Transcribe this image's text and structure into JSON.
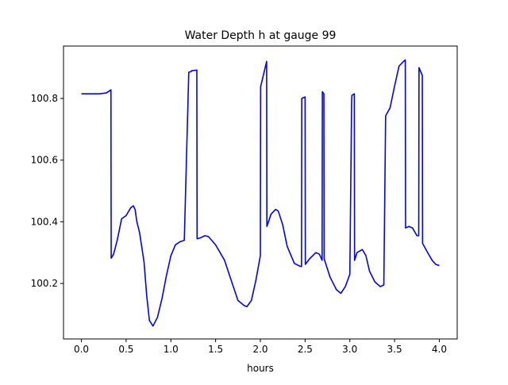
{
  "chart_data": {
    "type": "line",
    "title": "Water Depth h at gauge 99",
    "xlabel": "hours",
    "ylabel": "",
    "xlim": [
      -0.2,
      4.2
    ],
    "ylim": [
      100.02,
      100.97
    ],
    "xticks": [
      0.0,
      0.5,
      1.0,
      1.5,
      2.0,
      2.5,
      3.0,
      3.5,
      4.0
    ],
    "xtick_labels": [
      "0.0",
      "0.5",
      "1.0",
      "1.5",
      "2.0",
      "2.5",
      "3.0",
      "3.5",
      "4.0"
    ],
    "yticks": [
      100.2,
      100.4,
      100.6,
      100.8
    ],
    "ytick_labels": [
      "100.2",
      "100.4",
      "100.6",
      "100.8"
    ],
    "grid": false,
    "series": [
      {
        "color": "#0000ff",
        "x": [
          0.0,
          0.1,
          0.2,
          0.28,
          0.33,
          0.333,
          0.36,
          0.4,
          0.45,
          0.5,
          0.55,
          0.58,
          0.6,
          0.62,
          0.65,
          0.7,
          0.73,
          0.76,
          0.8,
          0.85,
          0.9,
          0.95,
          1.0,
          1.05,
          1.1,
          1.15,
          1.2,
          1.23,
          1.233,
          1.29,
          1.293,
          1.33,
          1.38,
          1.42,
          1.5,
          1.6,
          1.68,
          1.75,
          1.82,
          1.85,
          1.9,
          1.95,
          2.0,
          2.003,
          2.07,
          2.073,
          2.12,
          2.17,
          2.2,
          2.25,
          2.3,
          2.38,
          2.45,
          2.46,
          2.463,
          2.5,
          2.503,
          2.55,
          2.62,
          2.66,
          2.69,
          2.693,
          2.71,
          2.713,
          2.78,
          2.85,
          2.9,
          2.95,
          3.0,
          3.02,
          3.023,
          3.05,
          3.053,
          3.08,
          3.14,
          3.18,
          3.22,
          3.28,
          3.34,
          3.38,
          3.4,
          3.403,
          3.45,
          3.5,
          3.55,
          3.6,
          3.62,
          3.623,
          3.66,
          3.7,
          3.75,
          3.77,
          3.773,
          3.81,
          3.813,
          3.87,
          3.92,
          3.96,
          4.0
        ],
        "y": [
          100.815,
          100.815,
          100.815,
          100.818,
          100.828,
          100.282,
          100.295,
          100.34,
          100.41,
          100.42,
          100.445,
          100.452,
          100.44,
          100.4,
          100.365,
          100.27,
          100.16,
          100.08,
          100.062,
          100.09,
          100.15,
          100.225,
          100.29,
          100.325,
          100.335,
          100.34,
          100.885,
          100.888,
          100.89,
          100.892,
          100.345,
          100.348,
          100.355,
          100.352,
          100.325,
          100.275,
          100.205,
          100.145,
          100.128,
          100.125,
          100.145,
          100.21,
          100.29,
          100.838,
          100.92,
          100.385,
          100.425,
          100.44,
          100.435,
          100.39,
          100.32,
          100.265,
          100.255,
          100.255,
          100.8,
          100.805,
          100.262,
          100.28,
          100.3,
          100.295,
          100.275,
          100.822,
          100.815,
          100.28,
          100.22,
          100.18,
          100.168,
          100.19,
          100.23,
          100.785,
          100.81,
          100.815,
          100.275,
          100.3,
          100.31,
          100.29,
          100.24,
          100.205,
          100.19,
          100.195,
          100.742,
          100.745,
          100.77,
          100.84,
          100.905,
          100.92,
          100.925,
          100.38,
          100.385,
          100.38,
          100.355,
          100.355,
          100.9,
          100.875,
          100.33,
          100.3,
          100.275,
          100.262,
          100.258
        ]
      }
    ]
  }
}
